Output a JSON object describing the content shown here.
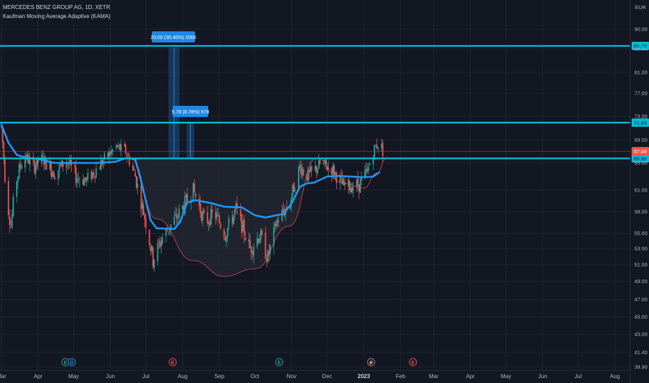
{
  "header": {
    "symbol": "MERCEDES BENZ GROUP AG, 1D, XETR",
    "indicator": "Kaufman Moving Average Adaptive (KAMA)"
  },
  "colors": {
    "background": "#131722",
    "up": "#26a69a",
    "down": "#ef5350",
    "kama": "#2196f3",
    "level": "#00bcd4",
    "cup": "#b0394a",
    "measure": "#1e88e5"
  },
  "chart_data": {
    "type": "candlestick",
    "currency_label": "EUR",
    "y_range": [
      39.0,
      95.0
    ],
    "y_ticks": [
      "90.00",
      "85.00",
      "81.00",
      "77.00",
      "73.00",
      "69.00",
      "65.00",
      "61.00",
      "58.00",
      "55.00",
      "53.00",
      "51.00",
      "49.00",
      "47.00",
      "45.00",
      "43.00",
      "41.40",
      "39.90"
    ],
    "x_ticks": [
      "Mar",
      "Apr",
      "May",
      "Jun",
      "Jul",
      "Aug",
      "Sep",
      "Oct",
      "Nov",
      "Dec",
      "2023",
      "Feb",
      "Mar",
      "Apr",
      "May",
      "Jun",
      "Jul",
      "Aug"
    ],
    "horizontal_levels": [
      {
        "label": "85.72",
        "value": 85.72
      },
      {
        "label": "71.93",
        "value": 71.93
      },
      {
        "label": "65.80",
        "value": 65.8
      }
    ],
    "last_price": {
      "label": "67.04",
      "value": 67.04
    },
    "measurements": [
      {
        "text": "20.00 (30.40%) 2000"
      },
      {
        "text": "5.78 (8.78%) 578"
      }
    ],
    "event_markers": [
      "D",
      "E",
      "E",
      "E",
      "E"
    ],
    "kama_line": [
      {
        "date": "2022-03-01",
        "value": 71.6
      },
      {
        "date": "2022-03-07",
        "value": 68.5
      },
      {
        "date": "2022-03-14",
        "value": 66.4
      },
      {
        "date": "2022-03-22",
        "value": 65.9
      },
      {
        "date": "2022-04-01",
        "value": 65.7
      },
      {
        "date": "2022-04-15",
        "value": 65.0
      },
      {
        "date": "2022-05-01",
        "value": 65.0
      },
      {
        "date": "2022-05-20",
        "value": 65.0
      },
      {
        "date": "2022-06-05",
        "value": 65.2
      },
      {
        "date": "2022-06-15",
        "value": 65.9
      },
      {
        "date": "2022-06-22",
        "value": 65.6
      },
      {
        "date": "2022-06-26",
        "value": 63.0
      },
      {
        "date": "2022-07-01",
        "value": 59.5
      },
      {
        "date": "2022-07-05",
        "value": 56.8
      },
      {
        "date": "2022-07-10",
        "value": 55.7
      },
      {
        "date": "2022-07-25",
        "value": 55.6
      },
      {
        "date": "2022-07-30",
        "value": 56.6
      },
      {
        "date": "2022-08-05",
        "value": 59.3
      },
      {
        "date": "2022-08-12",
        "value": 59.6
      },
      {
        "date": "2022-08-25",
        "value": 59.2
      },
      {
        "date": "2022-09-05",
        "value": 58.7
      },
      {
        "date": "2022-09-20",
        "value": 58.6
      },
      {
        "date": "2022-10-01",
        "value": 57.5
      },
      {
        "date": "2022-10-10",
        "value": 57.2
      },
      {
        "date": "2022-10-25",
        "value": 57.7
      },
      {
        "date": "2022-11-01",
        "value": 59.1
      },
      {
        "date": "2022-11-08",
        "value": 61.5
      },
      {
        "date": "2022-11-14",
        "value": 62.0
      },
      {
        "date": "2022-11-20",
        "value": 62.1
      },
      {
        "date": "2022-12-01",
        "value": 63.0
      },
      {
        "date": "2022-12-10",
        "value": 63.1
      },
      {
        "date": "2022-12-20",
        "value": 63.0
      },
      {
        "date": "2023-01-01",
        "value": 62.9
      },
      {
        "date": "2023-01-09",
        "value": 63.0
      },
      {
        "date": "2023-01-14",
        "value": 63.6
      }
    ],
    "cup_handle": [
      {
        "date": "2022-06-18",
        "value": 65.8
      },
      {
        "date": "2022-07-10",
        "value": 57.0
      },
      {
        "date": "2022-08-10",
        "value": 51.5
      },
      {
        "date": "2022-09-05",
        "value": 49.6
      },
      {
        "date": "2022-10-01",
        "value": 50.5
      },
      {
        "date": "2022-10-30",
        "value": 56.0
      },
      {
        "date": "2022-11-22",
        "value": 65.8
      },
      {
        "date": "2022-12-15",
        "value": 62.0
      },
      {
        "date": "2023-01-01",
        "value": 61.3
      },
      {
        "date": "2023-01-12",
        "value": 63.5
      },
      {
        "date": "2023-01-20",
        "value": 65.8
      }
    ],
    "price_path": [
      {
        "date": "2022-03-01",
        "value": 71.2
      },
      {
        "date": "2022-03-05",
        "value": 60.5
      },
      {
        "date": "2022-03-09",
        "value": 56.0
      },
      {
        "date": "2022-03-13",
        "value": 62.0
      },
      {
        "date": "2022-03-20",
        "value": 66.5
      },
      {
        "date": "2022-03-28",
        "value": 64.5
      },
      {
        "date": "2022-04-05",
        "value": 65.7
      },
      {
        "date": "2022-04-15",
        "value": 63.5
      },
      {
        "date": "2022-04-25",
        "value": 65.4
      },
      {
        "date": "2022-05-03",
        "value": 63.0
      },
      {
        "date": "2022-05-12",
        "value": 62.4
      },
      {
        "date": "2022-05-25",
        "value": 65.2
      },
      {
        "date": "2022-06-06",
        "value": 67.8
      },
      {
        "date": "2022-06-14",
        "value": 67.0
      },
      {
        "date": "2022-06-22",
        "value": 63.0
      },
      {
        "date": "2022-07-01",
        "value": 56.5
      },
      {
        "date": "2022-07-07",
        "value": 51.6
      },
      {
        "date": "2022-07-15",
        "value": 54.5
      },
      {
        "date": "2022-07-28",
        "value": 57.5
      },
      {
        "date": "2022-08-10",
        "value": 61.0
      },
      {
        "date": "2022-08-20",
        "value": 56.5
      },
      {
        "date": "2022-08-28",
        "value": 57.8
      },
      {
        "date": "2022-09-06",
        "value": 55.0
      },
      {
        "date": "2022-09-15",
        "value": 58.3
      },
      {
        "date": "2022-09-27",
        "value": 53.0
      },
      {
        "date": "2022-10-05",
        "value": 54.8
      },
      {
        "date": "2022-10-12",
        "value": 51.8
      },
      {
        "date": "2022-10-20",
        "value": 56.8
      },
      {
        "date": "2022-10-30",
        "value": 59.0
      },
      {
        "date": "2022-11-08",
        "value": 64.5
      },
      {
        "date": "2022-11-15",
        "value": 63.0
      },
      {
        "date": "2022-11-25",
        "value": 64.8
      },
      {
        "date": "2022-12-05",
        "value": 64.2
      },
      {
        "date": "2022-12-15",
        "value": 61.5
      },
      {
        "date": "2022-12-28",
        "value": 61.8
      },
      {
        "date": "2023-01-04",
        "value": 63.6
      },
      {
        "date": "2023-01-10",
        "value": 67.5
      },
      {
        "date": "2023-01-14",
        "value": 68.7
      },
      {
        "date": "2023-01-17",
        "value": 67.04
      }
    ]
  }
}
